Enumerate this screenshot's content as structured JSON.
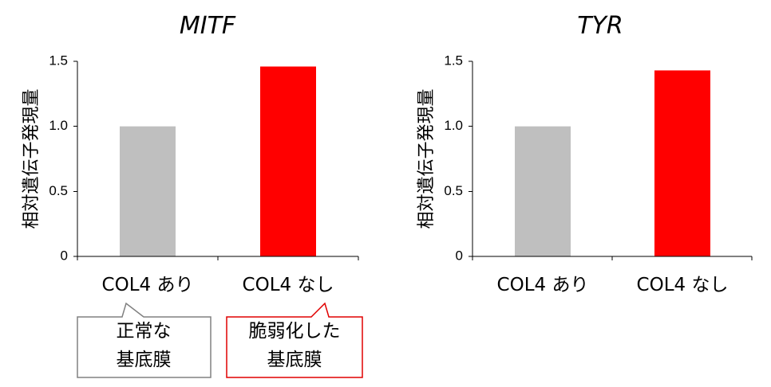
{
  "chart_data": [
    {
      "type": "bar",
      "title": "MITF",
      "ylabel": "相対遺伝子発現量",
      "xlabel": "",
      "categories": [
        "COL4 あり",
        "COL4 なし"
      ],
      "values": [
        1.0,
        1.46
      ],
      "bar_colors": [
        "#bfbfbf",
        "#ff0000"
      ],
      "ylim": [
        0,
        1.5
      ],
      "yticks": [
        {
          "value": 0,
          "label": "0"
        },
        {
          "value": 0.5,
          "label": "0.5"
        },
        {
          "value": 1.0,
          "label": "1.0"
        },
        {
          "value": 1.5,
          "label": "1.5"
        }
      ],
      "grid": false,
      "legend": "none"
    },
    {
      "type": "bar",
      "title": "TYR",
      "ylabel": "相対遺伝子発現量",
      "xlabel": "",
      "categories": [
        "COL4 あり",
        "COL4 なし"
      ],
      "values": [
        1.0,
        1.43
      ],
      "bar_colors": [
        "#bfbfbf",
        "#ff0000"
      ],
      "ylim": [
        0,
        1.5
      ],
      "yticks": [
        {
          "value": 0,
          "label": "0"
        },
        {
          "value": 0.5,
          "label": "0.5"
        },
        {
          "value": 1.0,
          "label": "1.0"
        },
        {
          "value": 1.5,
          "label": "1.5"
        }
      ],
      "grid": false,
      "legend": "none"
    }
  ],
  "callouts": [
    {
      "lines": [
        "正常な",
        "基底膜"
      ],
      "border_color": "#808080"
    },
    {
      "lines": [
        "脆弱化した",
        "基底膜"
      ],
      "border_color": "#e00000"
    }
  ]
}
